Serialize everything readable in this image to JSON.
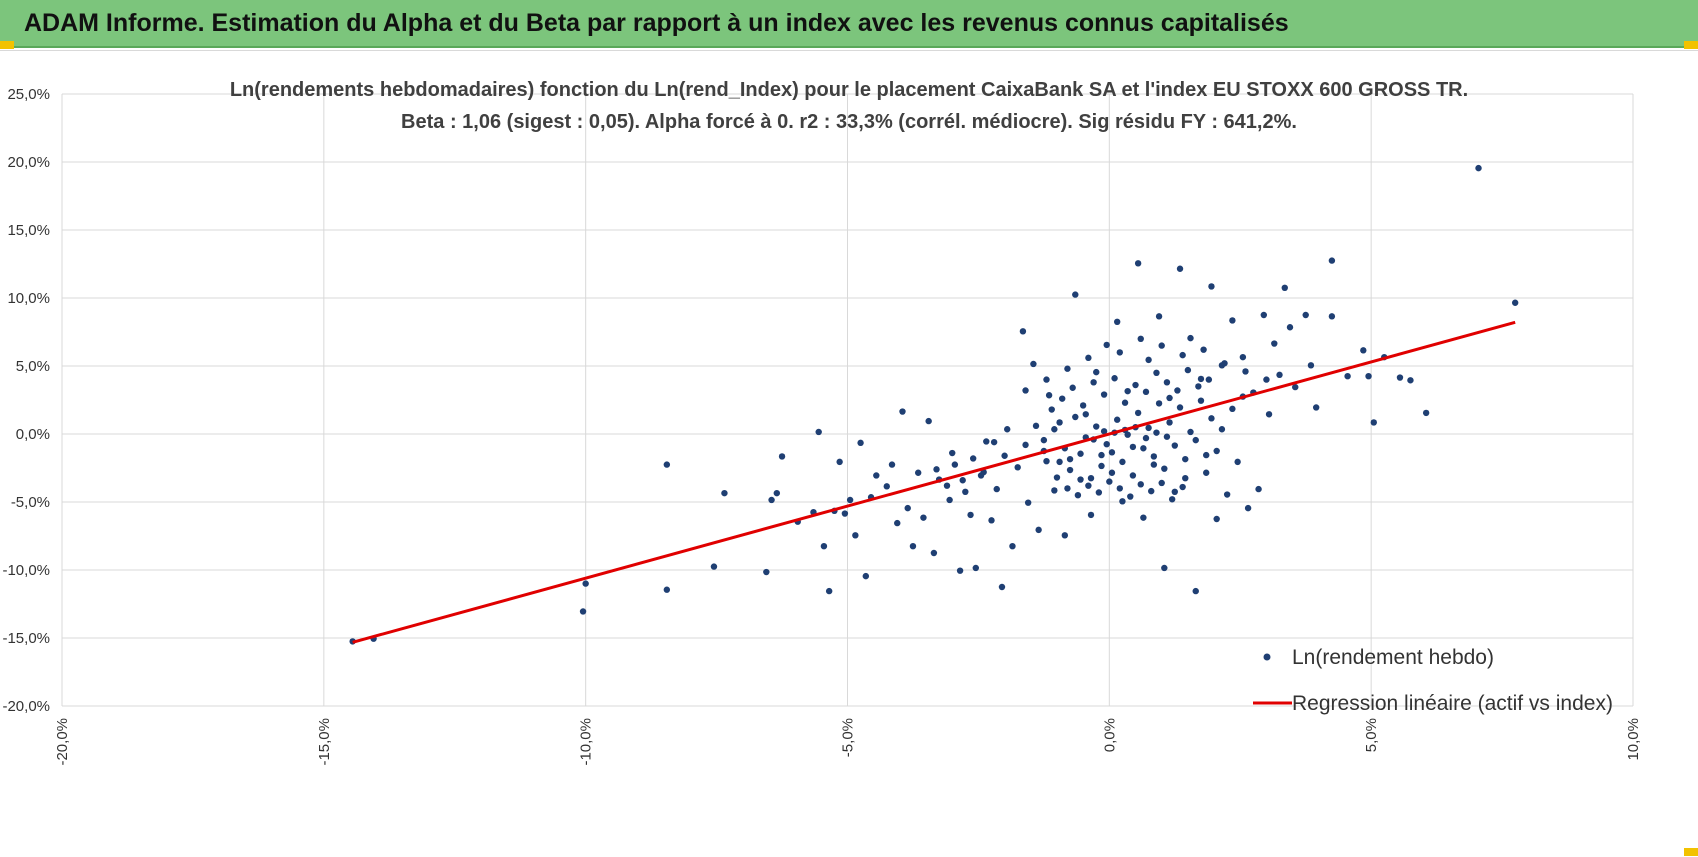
{
  "header": {
    "title": "ADAM Informe. Estimation du Alpha et du Beta par rapport à un index avec les revenus connus capitalisés"
  },
  "colors": {
    "banner": "#7cc57c",
    "points": "#1f3f73",
    "regression": "#e00000",
    "grid": "#d9d9d9",
    "accent": "#f2c200"
  },
  "chart_data": {
    "type": "scatter",
    "title": "Ln(rendements hebdomadaires) fonction du Ln(rend_Index) pour le placement CaixaBank SA et l'index EU STOXX 600 GROSS TR.",
    "subtitle": "Beta : 1,06 (sigest : 0,05). Alpha forcé à 0. r2 : 33,3% (corrél. médiocre). Sig résidu FY : 641,2%.",
    "xlabel": "",
    "ylabel": "",
    "xlim": [
      -0.2,
      0.1
    ],
    "ylim": [
      -0.2,
      0.25
    ],
    "x_ticks": [
      -0.2,
      -0.15,
      -0.1,
      -0.05,
      0.0,
      0.05,
      0.1
    ],
    "x_tick_labels": [
      "-20,0%",
      "-15,0%",
      "-10,0%",
      "-5,0%",
      "0,0%",
      "5,0%",
      "10,0%"
    ],
    "y_ticks": [
      -0.2,
      -0.15,
      -0.1,
      -0.05,
      0.0,
      0.05,
      0.1,
      0.15,
      0.2,
      0.25
    ],
    "y_tick_labels": [
      "-20,0%",
      "-15,0%",
      "-10,0%",
      "-5,0%",
      "0,0%",
      "5,0%",
      "10,0%",
      "15,0%",
      "20,0%",
      "25,0%"
    ],
    "grid": true,
    "legend_position": "bottom-right",
    "series": [
      {
        "name": "Ln(rendement hebdo)",
        "kind": "scatter",
        "points": [
          [
            -0.1445,
            -0.1525
          ],
          [
            -0.1405,
            -0.1505
          ],
          [
            -0.1005,
            -0.1305
          ],
          [
            -0.1,
            -0.11
          ],
          [
            -0.0845,
            -0.1145
          ],
          [
            -0.0845,
            -0.0225
          ],
          [
            -0.0755,
            -0.0975
          ],
          [
            -0.0735,
            -0.0435
          ],
          [
            -0.0655,
            -0.1015
          ],
          [
            -0.0645,
            -0.0485
          ],
          [
            -0.0635,
            -0.0435
          ],
          [
            -0.0625,
            -0.0165
          ],
          [
            -0.0595,
            -0.0645
          ],
          [
            -0.0565,
            -0.0575
          ],
          [
            -0.0555,
            0.0015
          ],
          [
            -0.0545,
            -0.0825
          ],
          [
            -0.0535,
            -0.1155
          ],
          [
            -0.0525,
            -0.0565
          ],
          [
            -0.0515,
            -0.0205
          ],
          [
            -0.0505,
            -0.0585
          ],
          [
            -0.0495,
            -0.0485
          ],
          [
            -0.0485,
            -0.0745
          ],
          [
            -0.0475,
            -0.0065
          ],
          [
            -0.0465,
            -0.1045
          ],
          [
            -0.0455,
            -0.0465
          ],
          [
            -0.0445,
            -0.0305
          ],
          [
            -0.0425,
            -0.0385
          ],
          [
            -0.0415,
            -0.0225
          ],
          [
            -0.0405,
            -0.0655
          ],
          [
            -0.0395,
            0.0165
          ],
          [
            -0.0385,
            -0.0545
          ],
          [
            -0.0375,
            -0.0825
          ],
          [
            -0.0365,
            -0.0285
          ],
          [
            -0.0355,
            -0.0615
          ],
          [
            -0.0345,
            0.0095
          ],
          [
            -0.0335,
            -0.0875
          ],
          [
            -0.0325,
            -0.0335
          ],
          [
            -0.0305,
            -0.0485
          ],
          [
            -0.0295,
            -0.0225
          ],
          [
            -0.0285,
            -0.1005
          ],
          [
            -0.0275,
            -0.0425
          ],
          [
            -0.0265,
            -0.0595
          ],
          [
            -0.0255,
            -0.0985
          ],
          [
            -0.0245,
            -0.0305
          ],
          [
            -0.0235,
            -0.0055
          ],
          [
            -0.0225,
            -0.0635
          ],
          [
            -0.0215,
            -0.0405
          ],
          [
            -0.0205,
            -0.1125
          ],
          [
            -0.0195,
            0.0035
          ],
          [
            -0.0185,
            -0.0825
          ],
          [
            -0.0175,
            -0.0245
          ],
          [
            -0.0165,
            0.0755
          ],
          [
            -0.0155,
            -0.0505
          ],
          [
            -0.0145,
            0.0515
          ],
          [
            -0.0135,
            -0.0705
          ],
          [
            -0.0125,
            -0.0125
          ],
          [
            -0.0115,
            0.0285
          ],
          [
            -0.0105,
            -0.0415
          ],
          [
            -0.0095,
            0.0085
          ],
          [
            -0.0085,
            -0.0745
          ],
          [
            -0.0075,
            -0.0185
          ],
          [
            -0.0065,
            0.1025
          ],
          [
            -0.0055,
            -0.0335
          ],
          [
            -0.0045,
            0.0145
          ],
          [
            -0.0035,
            -0.0595
          ],
          [
            -0.0025,
            0.0455
          ],
          [
            -0.0015,
            -0.0155
          ],
          [
            -0.0005,
            0.0655
          ],
          [
            0.0005,
            -0.0285
          ],
          [
            0.0015,
            0.0825
          ],
          [
            0.0025,
            -0.0495
          ],
          [
            0.0035,
            0.0315
          ],
          [
            0.0045,
            -0.0095
          ],
          [
            0.0055,
            0.1255
          ],
          [
            0.0065,
            -0.0615
          ],
          [
            0.0075,
            0.0545
          ],
          [
            0.0085,
            -0.0225
          ],
          [
            0.0095,
            0.0865
          ],
          [
            0.0105,
            -0.0985
          ],
          [
            0.0115,
            0.0265
          ],
          [
            0.0125,
            -0.0425
          ],
          [
            0.0135,
            0.1215
          ],
          [
            0.0145,
            -0.0325
          ],
          [
            0.0155,
            0.0705
          ],
          [
            0.0165,
            -0.1155
          ],
          [
            0.0175,
            0.0405
          ],
          [
            0.0185,
            -0.0155
          ],
          [
            0.0195,
            0.1085
          ],
          [
            0.0205,
            -0.0625
          ],
          [
            0.0215,
            0.0505
          ],
          [
            0.0225,
            -0.0445
          ],
          [
            0.0235,
            0.0835
          ],
          [
            0.0245,
            -0.0205
          ],
          [
            0.0255,
            0.0565
          ],
          [
            0.0265,
            -0.0545
          ],
          [
            0.0275,
            0.0305
          ],
          [
            0.0285,
            -0.0405
          ],
          [
            0.0295,
            0.0875
          ],
          [
            0.0305,
            0.0145
          ],
          [
            0.0315,
            0.0665
          ],
          [
            0.0325,
            0.0435
          ],
          [
            0.0335,
            0.1075
          ],
          [
            0.0345,
            0.0785
          ],
          [
            0.0355,
            0.0345
          ],
          [
            0.0375,
            0.0875
          ],
          [
            0.0385,
            0.0505
          ],
          [
            0.0395,
            0.0195
          ],
          [
            0.0425,
            0.0865
          ],
          [
            0.0425,
            0.1275
          ],
          [
            0.0455,
            0.0425
          ],
          [
            0.0485,
            0.0615
          ],
          [
            0.0495,
            0.0425
          ],
          [
            0.0505,
            0.0085
          ],
          [
            0.0525,
            0.0565
          ],
          [
            0.0555,
            0.0415
          ],
          [
            0.0575,
            0.0395
          ],
          [
            0.0605,
            0.0155
          ],
          [
            0.0705,
            0.1955
          ],
          [
            0.0775,
            0.0965
          ],
          [
            -0.0125,
            -0.0045
          ],
          [
            -0.0105,
            0.0035
          ],
          [
            -0.0085,
            -0.0105
          ],
          [
            -0.0065,
            0.0125
          ],
          [
            -0.0045,
            -0.0025
          ],
          [
            -0.0025,
            0.0055
          ],
          [
            -0.0005,
            -0.0075
          ],
          [
            0.0015,
            0.0105
          ],
          [
            0.0035,
            -0.0005
          ],
          [
            0.0055,
            0.0155
          ],
          [
            0.0075,
            0.0045
          ],
          [
            0.0095,
            0.0225
          ],
          [
            0.0115,
            0.0085
          ],
          [
            0.0135,
            0.0195
          ],
          [
            0.0155,
            0.0015
          ],
          [
            0.0175,
            0.0245
          ],
          [
            0.0195,
            0.0115
          ],
          [
            0.0215,
            0.0035
          ],
          [
            0.0235,
            0.0185
          ],
          [
            0.0255,
            0.0275
          ],
          [
            -0.0095,
            -0.0205
          ],
          [
            -0.0075,
            -0.0265
          ],
          [
            -0.0055,
            -0.0145
          ],
          [
            -0.0035,
            -0.0325
          ],
          [
            -0.0015,
            -0.0235
          ],
          [
            0.0005,
            -0.0135
          ],
          [
            0.0025,
            -0.0205
          ],
          [
            0.0045,
            -0.0305
          ],
          [
            0.0065,
            -0.0105
          ],
          [
            0.0085,
            -0.0165
          ],
          [
            0.0105,
            -0.0255
          ],
          [
            0.0125,
            -0.0085
          ],
          [
            0.0145,
            -0.0185
          ],
          [
            0.0165,
            -0.0045
          ],
          [
            0.0185,
            -0.0285
          ],
          [
            0.0205,
            -0.0125
          ],
          [
            -0.011,
            0.018
          ],
          [
            -0.009,
            0.026
          ],
          [
            -0.007,
            0.034
          ],
          [
            -0.005,
            0.021
          ],
          [
            -0.003,
            0.038
          ],
          [
            -0.001,
            0.029
          ],
          [
            0.001,
            0.041
          ],
          [
            0.003,
            0.023
          ],
          [
            0.005,
            0.036
          ],
          [
            0.007,
            0.031
          ],
          [
            0.009,
            0.045
          ],
          [
            0.011,
            0.038
          ],
          [
            0.013,
            0.032
          ],
          [
            0.015,
            0.047
          ],
          [
            0.017,
            0.035
          ],
          [
            0.019,
            0.04
          ],
          [
            -0.016,
            -0.008
          ],
          [
            -0.014,
            0.006
          ],
          [
            -0.012,
            -0.02
          ],
          [
            -0.01,
            -0.032
          ],
          [
            -0.008,
            -0.04
          ],
          [
            -0.006,
            -0.045
          ],
          [
            -0.004,
            -0.038
          ],
          [
            -0.002,
            -0.043
          ],
          [
            0.0,
            -0.035
          ],
          [
            0.002,
            -0.04
          ],
          [
            0.004,
            -0.046
          ],
          [
            0.006,
            -0.037
          ],
          [
            0.008,
            -0.042
          ],
          [
            0.01,
            -0.036
          ],
          [
            0.012,
            -0.048
          ],
          [
            0.014,
            -0.039
          ],
          [
            -0.02,
            -0.016
          ],
          [
            -0.022,
            -0.006
          ],
          [
            -0.024,
            -0.028
          ],
          [
            -0.026,
            -0.018
          ],
          [
            -0.028,
            -0.034
          ],
          [
            -0.03,
            -0.014
          ],
          [
            -0.031,
            -0.038
          ],
          [
            -0.033,
            -0.026
          ],
          [
            0.002,
            0.06
          ],
          [
            0.006,
            0.07
          ],
          [
            0.01,
            0.065
          ],
          [
            0.014,
            0.058
          ],
          [
            0.018,
            0.062
          ],
          [
            0.022,
            0.052
          ],
          [
            0.026,
            0.046
          ],
          [
            0.03,
            0.04
          ],
          [
            -0.004,
            0.056
          ],
          [
            -0.008,
            0.048
          ],
          [
            -0.012,
            0.04
          ],
          [
            -0.016,
            0.032
          ],
          [
            0.001,
            0.001
          ],
          [
            0.003,
            0.003
          ],
          [
            0.005,
            0.005
          ],
          [
            0.007,
            -0.003
          ],
          [
            0.009,
            0.001
          ],
          [
            -0.001,
            0.002
          ],
          [
            -0.003,
            -0.004
          ],
          [
            0.011,
            -0.002
          ]
        ]
      },
      {
        "name": "Regression linéaire (actif vs index)",
        "kind": "line",
        "slope": 1.06,
        "intercept": 0,
        "x_range": [
          -0.1445,
          0.0775
        ]
      }
    ]
  }
}
